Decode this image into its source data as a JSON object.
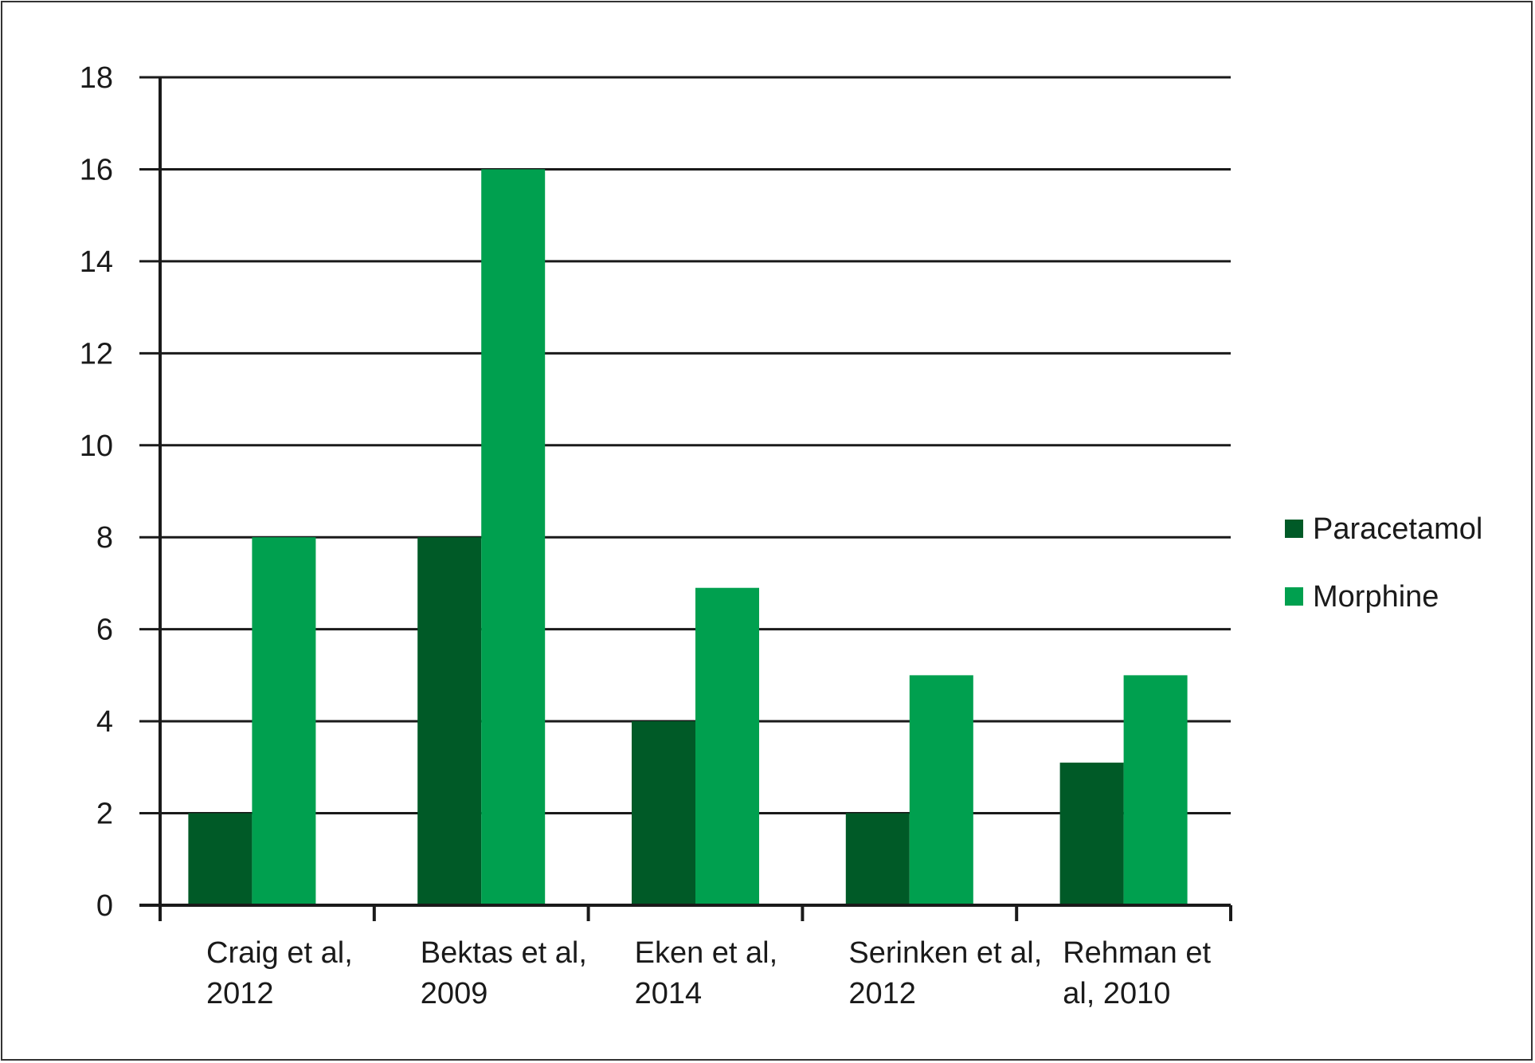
{
  "chart_data": {
    "type": "bar",
    "categories": [
      [
        "Craig et al,",
        "2012"
      ],
      [
        "Bektas et al,",
        "2009"
      ],
      [
        "Eken et al,",
        "2014"
      ],
      [
        "Serinken et al,",
        "2012"
      ],
      [
        "Rehman et",
        "al, 2010"
      ]
    ],
    "series": [
      {
        "name": "Paracetamol",
        "color": "#005a27",
        "values": [
          2,
          8,
          4,
          2,
          3.1
        ]
      },
      {
        "name": "Morphine",
        "color": "#00a04f",
        "values": [
          8,
          16,
          6.9,
          5,
          5
        ]
      }
    ],
    "yticks": [
      "0",
      "2",
      "4",
      "6",
      "8",
      "10",
      "12",
      "14",
      "16",
      "18"
    ],
    "ylim": [
      0,
      18
    ],
    "grid": true,
    "legend_position": "right"
  }
}
